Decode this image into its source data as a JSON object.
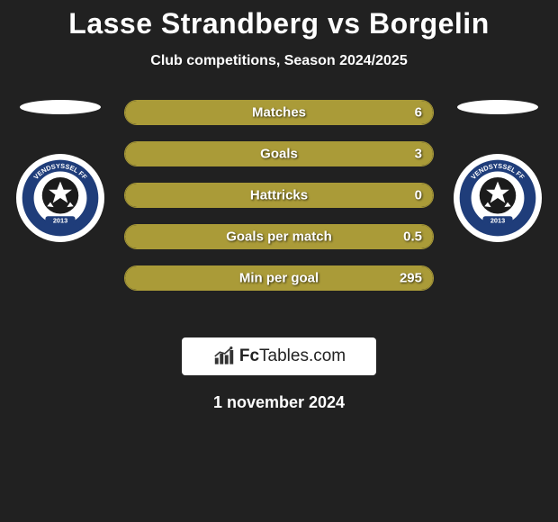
{
  "title": "Lasse Strandberg vs Borgelin",
  "subtitle": "Club competitions, Season 2024/2025",
  "date": "1 november 2024",
  "logo": {
    "brand": "Fc",
    "rest": "Tables.com"
  },
  "colors": {
    "background": "#212121",
    "bar_fill": "#aa9b38",
    "bar_border": "#aa9b38",
    "text": "#ffffff"
  },
  "badge": {
    "outer": "#1f3d7a",
    "inner": "#ffffff",
    "year": "2013",
    "name": "VENDSYSSEL FF"
  },
  "bars": [
    {
      "label": "Matches",
      "left": "",
      "right": "6",
      "left_pct": 50,
      "right_pct": 50
    },
    {
      "label": "Goals",
      "left": "",
      "right": "3",
      "left_pct": 50,
      "right_pct": 50
    },
    {
      "label": "Hattricks",
      "left": "",
      "right": "0",
      "left_pct": 50,
      "right_pct": 50
    },
    {
      "label": "Goals per match",
      "left": "",
      "right": "0.5",
      "left_pct": 50,
      "right_pct": 50
    },
    {
      "label": "Min per goal",
      "left": "",
      "right": "295",
      "left_pct": 50,
      "right_pct": 50
    }
  ]
}
